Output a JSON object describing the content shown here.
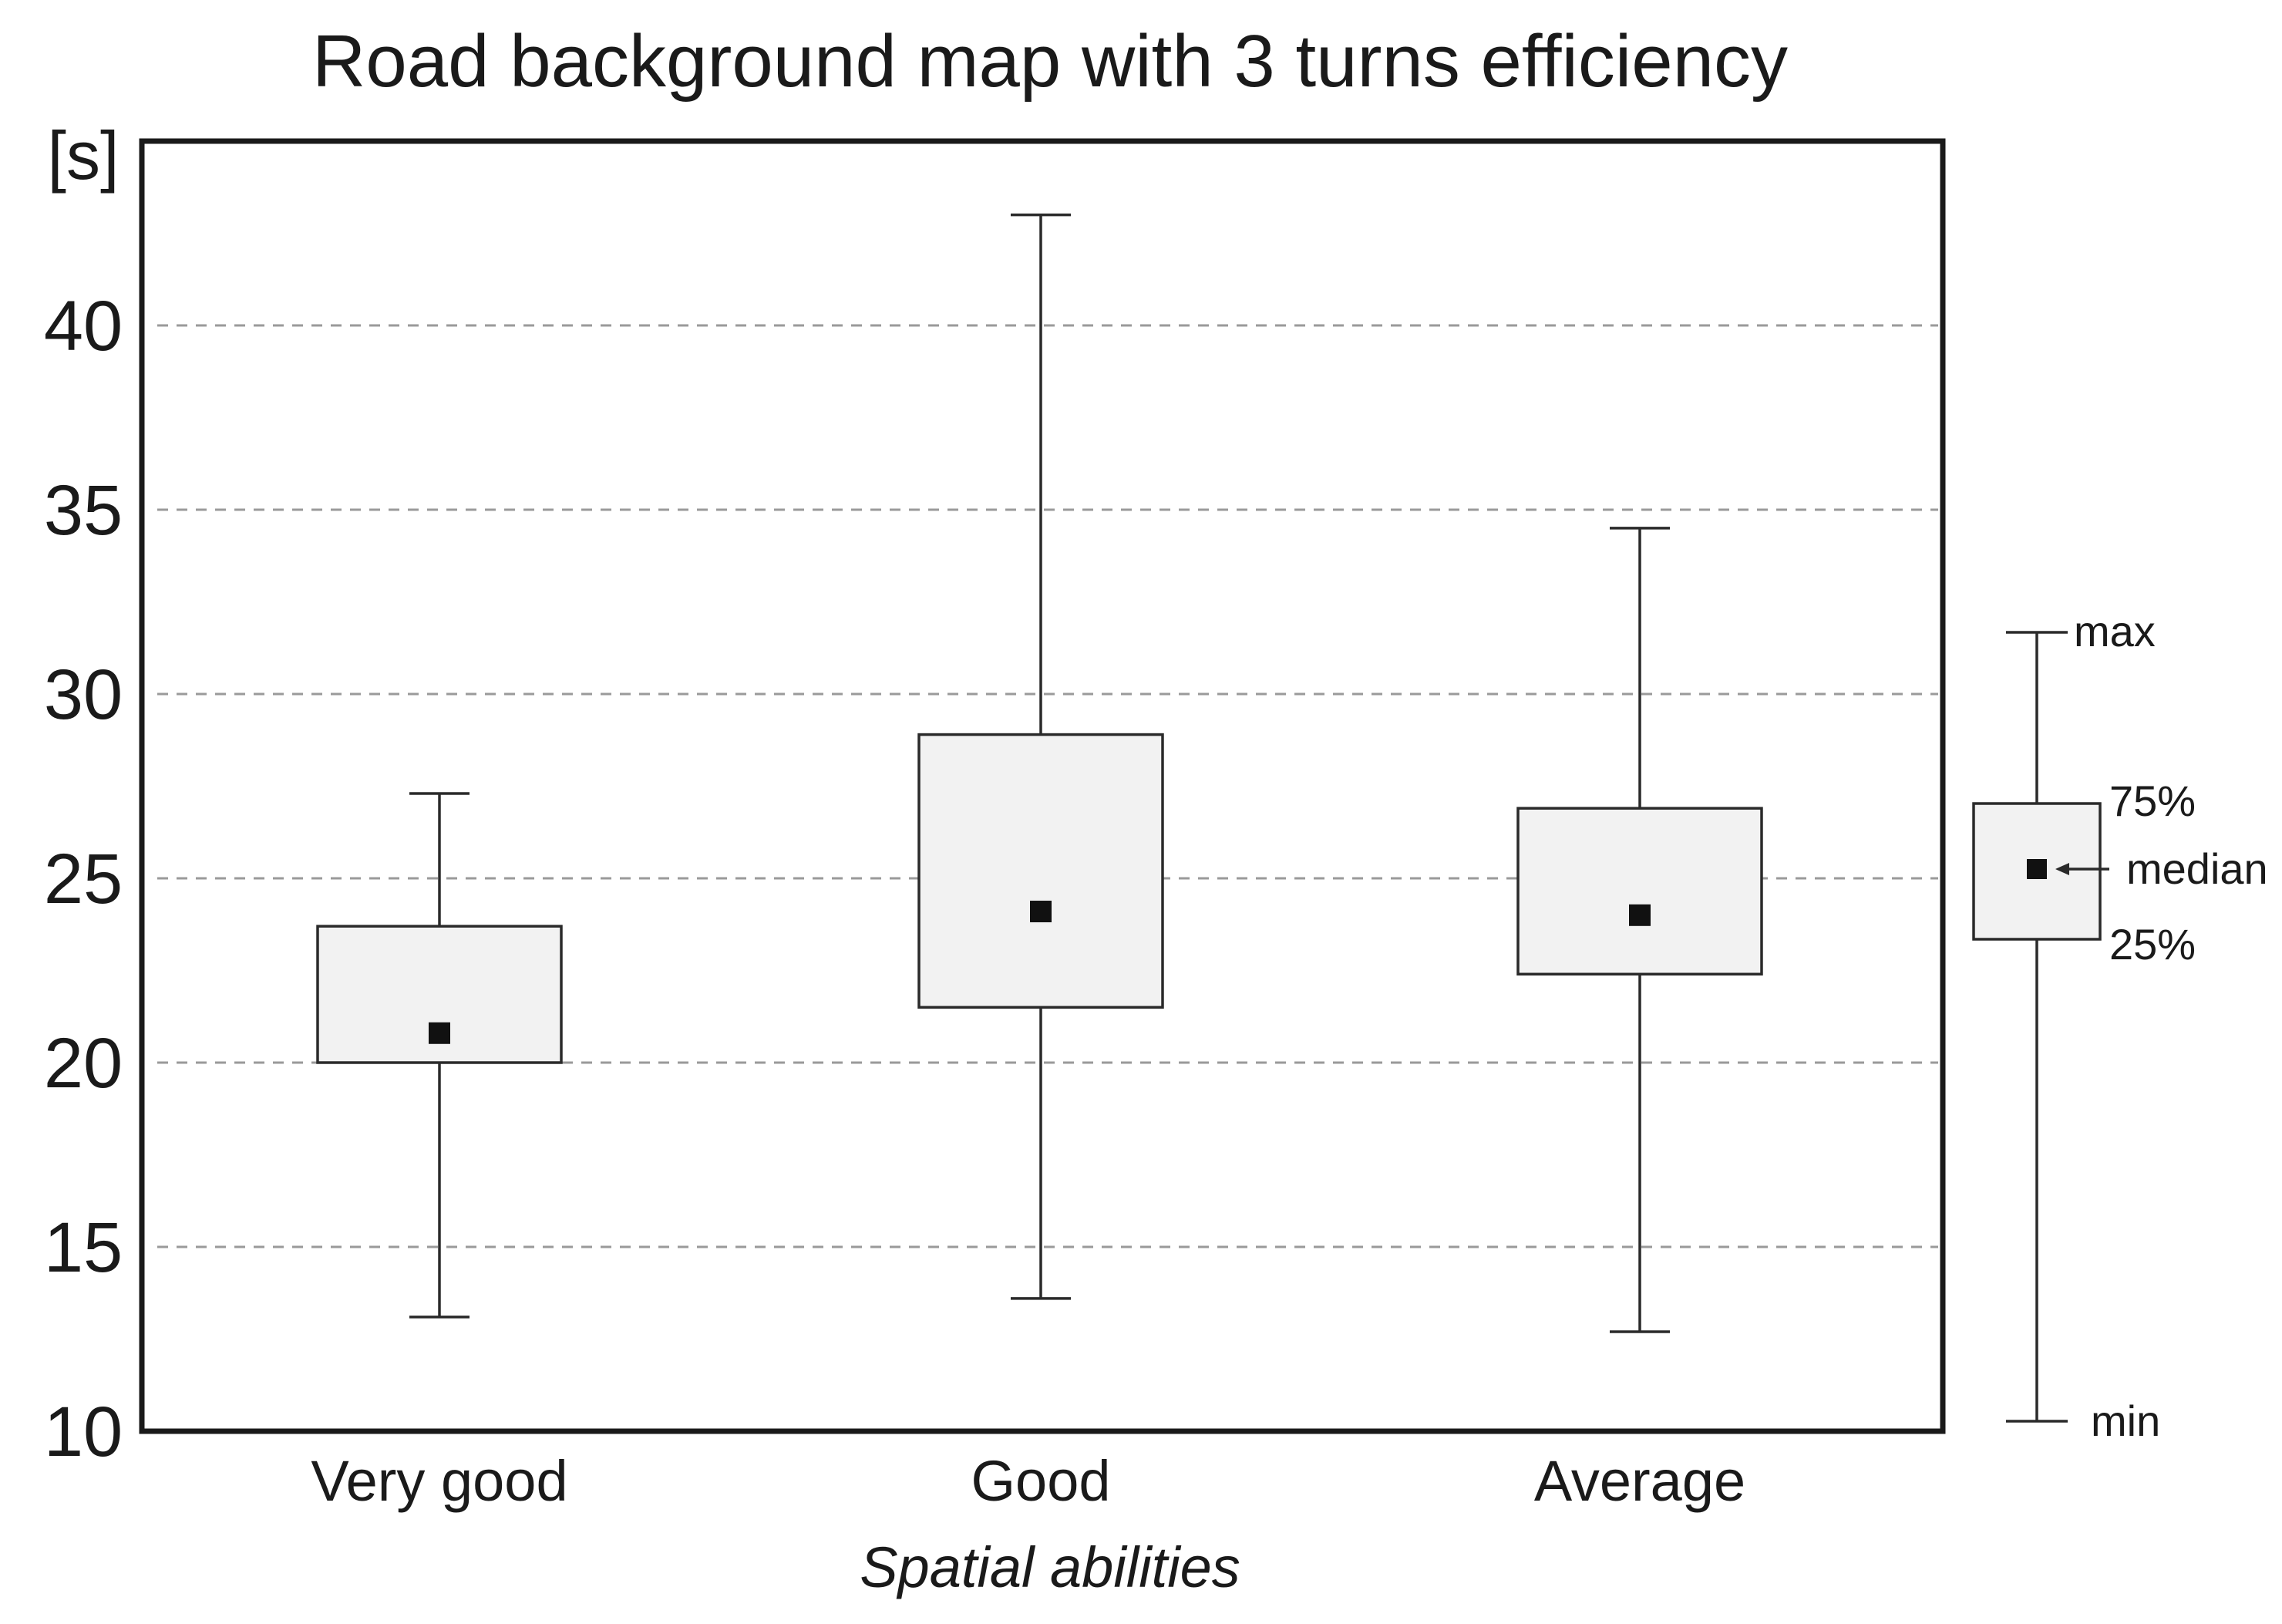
{
  "chart_data": {
    "type": "boxplot",
    "title": "Road background map with 3 turns efficiency",
    "ylabel": "[s]",
    "xlabel": "Spatial abilities",
    "ylim": [
      10,
      45
    ],
    "yticks": [
      10,
      15,
      20,
      25,
      30,
      35,
      40
    ],
    "grid": true,
    "categories": [
      "Very good",
      "Good",
      "Average"
    ],
    "series": [
      {
        "category": "Very good",
        "min": 13.1,
        "q1": 20.0,
        "median": 20.8,
        "q3": 23.7,
        "max": 27.3
      },
      {
        "category": "Good",
        "min": 13.6,
        "q1": 21.5,
        "median": 24.1,
        "q3": 28.9,
        "max": 43.0
      },
      {
        "category": "Average",
        "min": 12.7,
        "q1": 22.4,
        "median": 24.0,
        "q3": 26.9,
        "max": 34.5
      }
    ],
    "legend": {
      "placement": "right",
      "max_label": "max",
      "q3_label": "75%",
      "median_label": "median",
      "q1_label": "25%",
      "min_label": "min"
    },
    "colors": {
      "box_fill": "#f2f2f2",
      "median_marker": "#111111",
      "grid": "#9a9a9a"
    }
  }
}
